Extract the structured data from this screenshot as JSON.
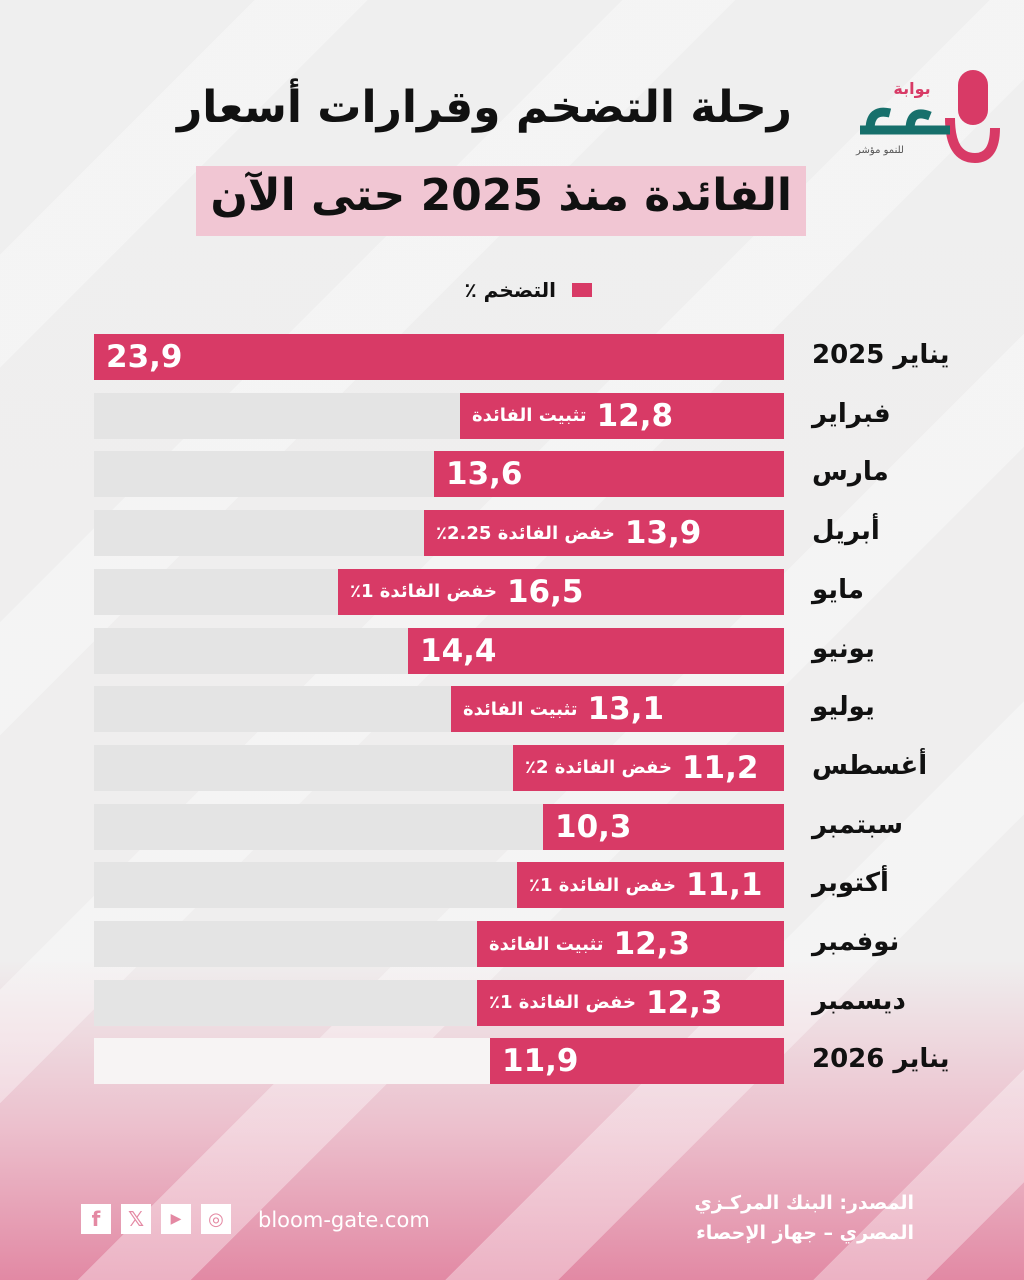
{
  "header": {
    "title_line1": "رحلة التضخم وقرارات أسعار",
    "title_line2": "الفائدة منذ 2025 حتى الآن"
  },
  "logo": {
    "top": "بوابة",
    "name": "بلوم",
    "tagline": "للنمو مؤشر"
  },
  "colors": {
    "bar": "#d83a66",
    "track": "#e4e4e4",
    "accent": "#f1c6d3"
  },
  "chart_data": {
    "type": "bar",
    "orientation": "horizontal",
    "legend": [
      "التضخم ٪"
    ],
    "categories": [
      "يناير 2025",
      "فبراير",
      "مارس",
      "أبريل",
      "مايو",
      "يونيو",
      "يوليو",
      "أغسطس",
      "سبتمبر",
      "أكتوبر",
      "نوفمبر",
      "ديسمبر",
      "يناير 2026"
    ],
    "values": [
      23.9,
      12.8,
      13.6,
      13.9,
      16.5,
      14.4,
      13.1,
      11.2,
      10.3,
      11.1,
      12.3,
      12.3,
      11.9
    ],
    "value_labels": [
      "23,9",
      "12,8",
      "13,6",
      "13,9",
      "16,5",
      "14,4",
      "13,1",
      "11,2",
      "10,3",
      "11,1",
      "12,3",
      "12,3",
      "11,9"
    ],
    "annotations": [
      "",
      "تثبيت الفائدة",
      "",
      "خفض الفائدة 2.25٪",
      "خفض الفائدة 1٪",
      "",
      "تثبيت الفائدة",
      "خفض الفائدة 2٪",
      "",
      "خفض الفائدة 1٪",
      "تثبيت الفائدة",
      "خفض الفائدة 1٪",
      ""
    ]
  },
  "footer": {
    "source_line1": "المصدر: البنك المركـزي",
    "source_line2": "المصري – جهاز الإحصاء",
    "website": "bloom-gate.com",
    "social": [
      "facebook-icon",
      "x-icon",
      "youtube-icon",
      "instagram-icon"
    ]
  }
}
